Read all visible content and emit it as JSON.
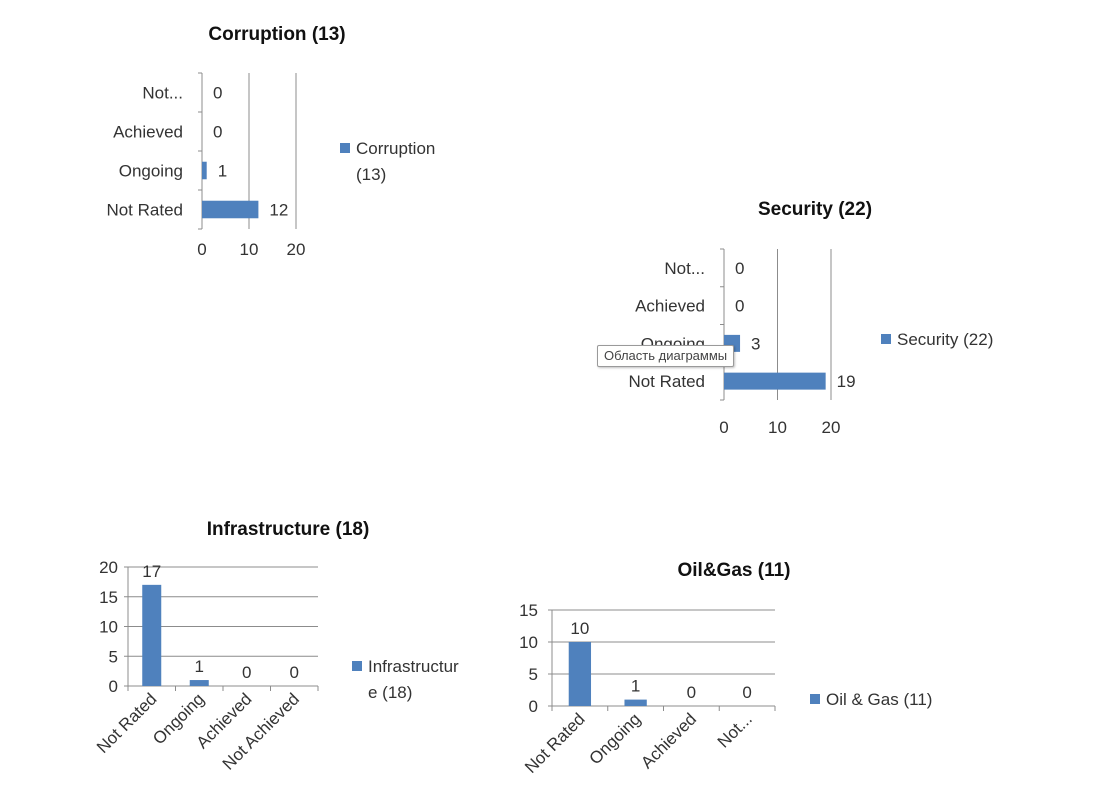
{
  "tooltip": "Область диаграммы",
  "colors": {
    "bar": "#4f81bd",
    "grid": "#8c8c8c"
  },
  "chart_data": [
    {
      "id": "corruption",
      "type": "bar",
      "orientation": "horizontal",
      "title": "Corruption (13)",
      "categories": [
        "Not...",
        "Achieved",
        "Ongoing",
        "Not Rated"
      ],
      "values": [
        0,
        0,
        1,
        12
      ],
      "value_labels": [
        "0",
        "0",
        "1",
        "12"
      ],
      "xlim": [
        0,
        20
      ],
      "ticks": [
        "0",
        "10",
        "20"
      ],
      "legend": [
        "Corruption",
        "(13)"
      ],
      "legend_position": "right"
    },
    {
      "id": "security",
      "type": "bar",
      "orientation": "horizontal",
      "title": "Security (22)",
      "categories": [
        "Not...",
        "Achieved",
        "Ongoing",
        "Not Rated"
      ],
      "values": [
        0,
        0,
        3,
        19
      ],
      "value_labels": [
        "0",
        "0",
        "3",
        "19"
      ],
      "xlim": [
        0,
        20
      ],
      "ticks": [
        "0",
        "10",
        "20"
      ],
      "legend": [
        "Security (22)"
      ],
      "legend_position": "right"
    },
    {
      "id": "infrastructure",
      "type": "bar",
      "orientation": "vertical",
      "title": "Infrastructure (18)",
      "categories": [
        "Not Rated",
        "Ongoing",
        "Achieved",
        "Not Achieved"
      ],
      "values": [
        17,
        1,
        0,
        0
      ],
      "value_labels": [
        "17",
        "1",
        "0",
        "0"
      ],
      "ylim": [
        0,
        20
      ],
      "ticks": [
        "0",
        "5",
        "10",
        "15",
        "20"
      ],
      "legend": [
        "Infrastructur",
        "e (18)"
      ],
      "legend_position": "right"
    },
    {
      "id": "oilgas",
      "type": "bar",
      "orientation": "vertical",
      "title": "Oil&Gas (11)",
      "categories": [
        "Not Rated",
        "Ongoing",
        "Achieved",
        "Not..."
      ],
      "values": [
        10,
        1,
        0,
        0
      ],
      "value_labels": [
        "10",
        "1",
        "0",
        "0"
      ],
      "ylim": [
        0,
        15
      ],
      "ticks": [
        "0",
        "5",
        "10",
        "15"
      ],
      "legend": [
        "Oil & Gas (11)"
      ],
      "legend_position": "right"
    }
  ]
}
